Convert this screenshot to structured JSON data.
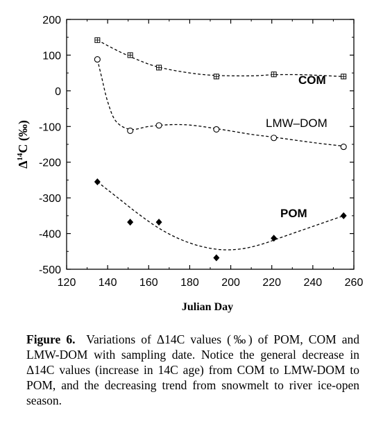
{
  "chart_data": {
    "type": "line",
    "xlabel": "Julian Day",
    "ylabel": "Δ14C (‰)",
    "xlim": [
      120,
      260
    ],
    "ylim": [
      -500,
      200
    ],
    "x_ticks": [
      120,
      140,
      160,
      180,
      200,
      220,
      240,
      260
    ],
    "y_ticks": [
      200,
      100,
      0,
      -100,
      -200,
      -300,
      -400,
      -500
    ],
    "series": [
      {
        "name": "COM",
        "marker": "square-plus",
        "x": [
          135,
          151,
          165,
          193,
          221,
          255
        ],
        "y": [
          142,
          100,
          65,
          40,
          46,
          40
        ],
        "fit": [
          [
            135,
            142
          ],
          [
            145,
            112
          ],
          [
            155,
            86
          ],
          [
            165,
            66
          ],
          [
            180,
            50
          ],
          [
            193,
            43
          ],
          [
            210,
            42
          ],
          [
            221,
            45
          ],
          [
            235,
            45
          ],
          [
            255,
            40
          ]
        ]
      },
      {
        "name": "LMW-DOM",
        "marker": "circle-open",
        "x": [
          135,
          151,
          165,
          193,
          221,
          255
        ],
        "y": [
          88,
          -112,
          -97,
          -108,
          -132,
          -157
        ],
        "fit": [
          [
            135,
            88
          ],
          [
            137,
            40
          ],
          [
            140,
            -30
          ],
          [
            144,
            -85
          ],
          [
            151,
            -108
          ],
          [
            160,
            -100
          ],
          [
            170,
            -95
          ],
          [
            180,
            -96
          ],
          [
            193,
            -106
          ],
          [
            210,
            -122
          ],
          [
            221,
            -130
          ],
          [
            240,
            -145
          ],
          [
            255,
            -155
          ]
        ]
      },
      {
        "name": "POM",
        "marker": "diamond-filled",
        "x": [
          135,
          151,
          165,
          193,
          221,
          255
        ],
        "y": [
          -255,
          -368,
          -368,
          -468,
          -413,
          -350
        ],
        "fit": [
          [
            135,
            -255
          ],
          [
            145,
            -300
          ],
          [
            155,
            -345
          ],
          [
            165,
            -385
          ],
          [
            175,
            -415
          ],
          [
            185,
            -435
          ],
          [
            195,
            -445
          ],
          [
            205,
            -443
          ],
          [
            215,
            -430
          ],
          [
            225,
            -410
          ],
          [
            240,
            -380
          ],
          [
            255,
            -350
          ]
        ]
      }
    ],
    "labels": {
      "com": "COM",
      "lmw": "LMW–DOM",
      "pom": "POM"
    },
    "ylabel_parts": {
      "delta": "Δ",
      "sup": "14",
      "rest": "C (‰)"
    }
  },
  "caption": {
    "figure_label": "Figure 6.",
    "text": "Variations of Δ14C values (‰) of POM, COM and LMW-DOM with sampling date. Notice the general decrease in Δ14C values (increase in 14C age) from COM to LMW-DOM to POM, and the decreasing trend from snowmelt to river ice-open season."
  }
}
